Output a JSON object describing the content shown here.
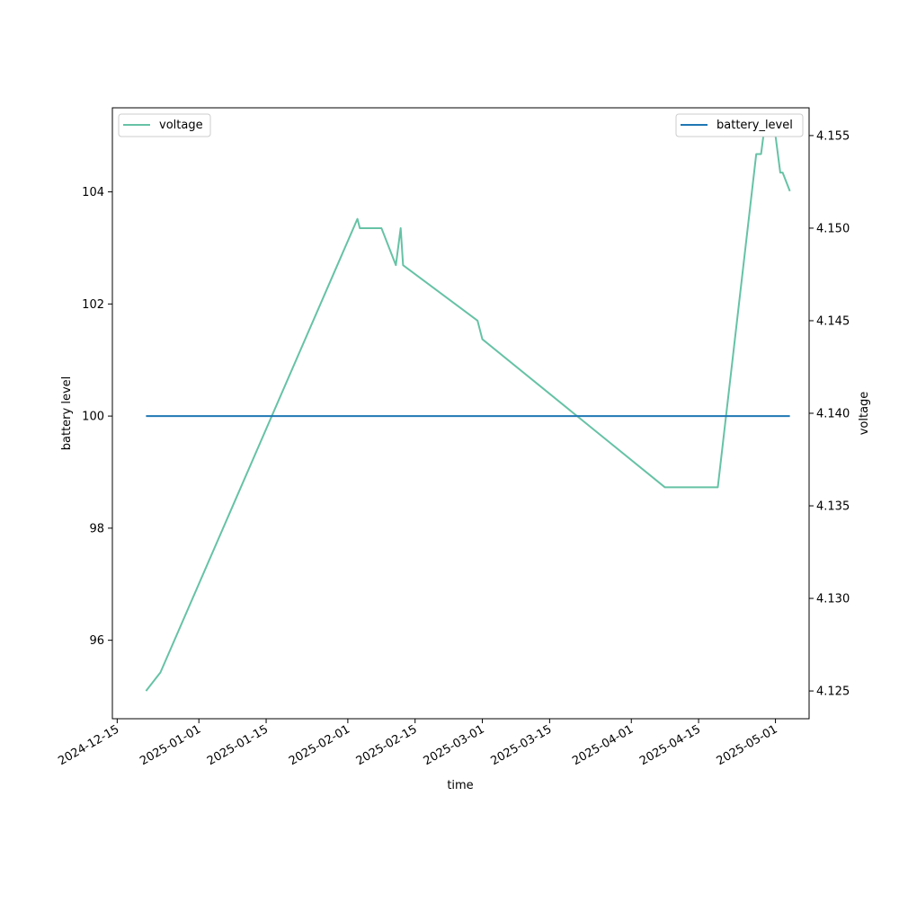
{
  "chart_data": {
    "type": "line",
    "xlabel": "time",
    "ylabel": "battery level",
    "y2label": "voltage",
    "xlim": [
      "2024-12-14",
      "2025-05-08"
    ],
    "ylim": [
      94.6,
      105.5
    ],
    "y2lim": [
      4.1235,
      4.1565
    ],
    "grid": false,
    "x_ticks": [
      "2024-12-15",
      "2025-01-01",
      "2025-01-15",
      "2025-02-01",
      "2025-02-15",
      "2025-03-01",
      "2025-03-15",
      "2025-04-01",
      "2025-04-15",
      "2025-05-01"
    ],
    "y_ticks": [
      96,
      98,
      100,
      102,
      104
    ],
    "y_tick_labels": [
      "96",
      "98",
      "100",
      "102",
      "104"
    ],
    "y2_ticks": [
      4.125,
      4.13,
      4.135,
      4.14,
      4.145,
      4.15,
      4.155
    ],
    "y2_tick_labels": [
      "4.125",
      "4.130",
      "4.135",
      "4.140",
      "4.145",
      "4.150",
      "4.155"
    ],
    "series": [
      {
        "name": "battery_level",
        "axis": "left",
        "color": "#1f77b4",
        "legend": "top-right",
        "x": [
          "2024-12-21",
          "2025-05-04"
        ],
        "y": [
          100,
          100
        ]
      },
      {
        "name": "voltage",
        "axis": "right",
        "color": "#66c2a5",
        "legend": "top-left",
        "x": [
          "2024-12-21",
          "2024-12-24",
          "2025-02-03",
          "2025-02-03T12:00",
          "2025-02-08",
          "2025-02-11",
          "2025-02-12",
          "2025-02-12T12:00",
          "2025-02-28",
          "2025-03-01",
          "2025-04-08",
          "2025-04-19",
          "2025-04-27",
          "2025-04-28",
          "2025-04-28T12:00",
          "2025-05-01",
          "2025-05-02",
          "2025-05-02T12:00",
          "2025-05-04"
        ],
        "y": [
          4.125,
          4.126,
          4.1505,
          4.15,
          4.15,
          4.148,
          4.15,
          4.148,
          4.145,
          4.144,
          4.136,
          4.136,
          4.154,
          4.154,
          4.155,
          4.155,
          4.153,
          4.153,
          4.152
        ]
      }
    ]
  }
}
